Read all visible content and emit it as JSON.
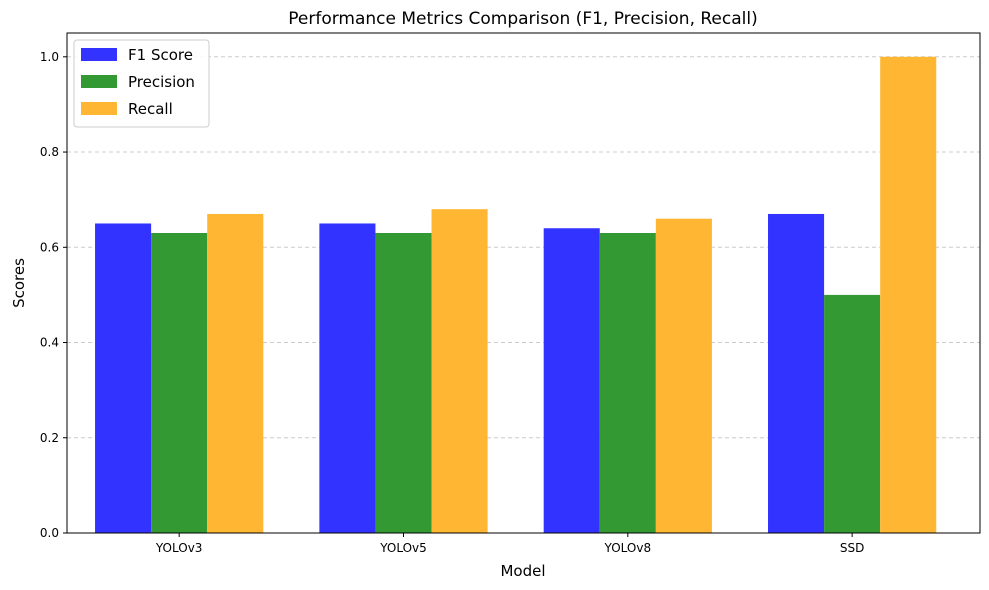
{
  "chart_data": {
    "type": "bar",
    "title": "Performance Metrics Comparison (F1, Precision, Recall)",
    "xlabel": "Model",
    "ylabel": "Scores",
    "categories": [
      "YOLOv3",
      "YOLOv5",
      "YOLOv8",
      "SSD"
    ],
    "series": [
      {
        "name": "F1 Score",
        "color": "#3333ff",
        "values": [
          0.65,
          0.65,
          0.64,
          0.67
        ]
      },
      {
        "name": "Precision",
        "color": "#339933",
        "values": [
          0.63,
          0.63,
          0.63,
          0.5
        ]
      },
      {
        "name": "Recall",
        "color": "#ffb733",
        "values": [
          0.67,
          0.68,
          0.66,
          1.0
        ]
      }
    ],
    "ylim": [
      0,
      1.05
    ],
    "yticks": [
      "0.0",
      "0.2",
      "0.4",
      "0.6",
      "0.8",
      "1.0"
    ],
    "grid": "y-dashed",
    "legend_position": "top-left"
  }
}
